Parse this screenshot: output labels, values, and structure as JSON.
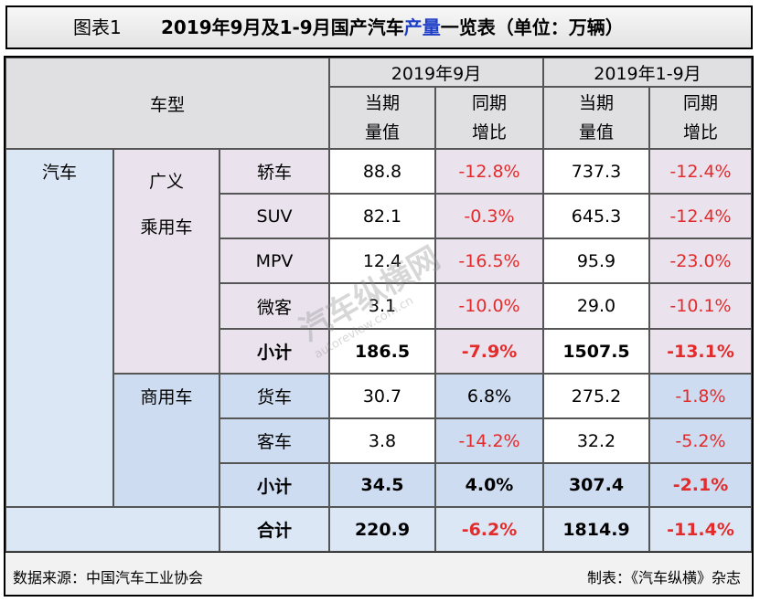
{
  "title": {
    "figure": "图表1",
    "main_prefix": "2019年9月及1-9月国产汽车",
    "main_highlight": "产量",
    "main_suffix": "一览表（单位：万辆）"
  },
  "header": {
    "vehicle_type": "车型",
    "period_sep": "2019年9月",
    "period_ytd": "2019年1-9月",
    "current_l1": "当期",
    "current_l2": "量值",
    "yoy_l1": "同期",
    "yoy_l2": "增比"
  },
  "categories": {
    "auto": "汽车",
    "passenger_l1": "广义",
    "passenger_l2": "乘用车",
    "commercial": "商用车"
  },
  "rows": [
    {
      "name": "轿车",
      "sep_value": "88.8",
      "sep_yoy": "-12.8%",
      "ytd_value": "737.3",
      "ytd_yoy": "-12.4%"
    },
    {
      "name": "SUV",
      "sep_value": "82.1",
      "sep_yoy": "-0.3%",
      "ytd_value": "645.3",
      "ytd_yoy": "-12.4%"
    },
    {
      "name": "MPV",
      "sep_value": "12.4",
      "sep_yoy": "-16.5%",
      "ytd_value": "95.9",
      "ytd_yoy": "-23.0%"
    },
    {
      "name": "微客",
      "sep_value": "3.1",
      "sep_yoy": "-10.0%",
      "ytd_value": "29.0",
      "ytd_yoy": "-10.1%"
    },
    {
      "name": "小计",
      "sep_value": "186.5",
      "sep_yoy": "-7.9%",
      "ytd_value": "1507.5",
      "ytd_yoy": "-13.1%"
    },
    {
      "name": "货车",
      "sep_value": "30.7",
      "sep_yoy": "6.8%",
      "ytd_value": "275.2",
      "ytd_yoy": "-1.8%"
    },
    {
      "name": "客车",
      "sep_value": "3.8",
      "sep_yoy": "-14.2%",
      "ytd_value": "32.2",
      "ytd_yoy": "-5.2%"
    },
    {
      "name": "小计",
      "sep_value": "34.5",
      "sep_yoy": "4.0%",
      "ytd_value": "307.4",
      "ytd_yoy": "-2.1%"
    },
    {
      "name": "合计",
      "sep_value": "220.9",
      "sep_yoy": "-6.2%",
      "ytd_value": "1814.9",
      "ytd_yoy": "-11.4%"
    }
  ],
  "watermark": {
    "text": "汽车纵横网",
    "url": "autoreview.com.cn"
  },
  "footer": {
    "source": "数据来源：中国汽车工业协会",
    "made_by": "制表：《汽车纵横》杂志"
  },
  "colors": {
    "negative": "#e32b2b",
    "highlight": "#1f3fc7",
    "passenger_bg": "#eae3ee",
    "commercial_bg": "#cddcf0",
    "header_bg": "#e0e0e3"
  }
}
